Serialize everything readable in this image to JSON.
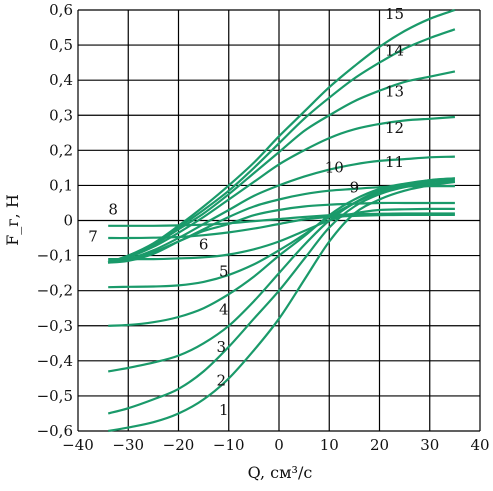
{
  "chart_data": {
    "type": "line",
    "xlabel": "Q, см³/с",
    "ylabel": "F_г, Н",
    "xlim": [
      -40,
      40
    ],
    "ylim": [
      -0.6,
      0.6
    ],
    "grid": true,
    "x_ticks": [
      "−40",
      "−30",
      "−20",
      "−10",
      "0",
      "10",
      "20",
      "30",
      "40"
    ],
    "y_ticks": [
      "0,6",
      "0,5",
      "0,4",
      "0,3",
      "0,2",
      "0,1",
      "0",
      "−0,1",
      "−0,2",
      "−0,3",
      "−0,4",
      "−0,5",
      "−0,6"
    ],
    "line_color": "#1a9a6a",
    "x": [
      -34,
      -30,
      -25,
      -20,
      -15,
      -10,
      -5,
      0,
      5,
      10,
      15,
      20,
      25,
      30,
      35
    ],
    "series": [
      {
        "label": "1",
        "values": [
          -0.6,
          -0.59,
          -0.575,
          -0.55,
          -0.51,
          -0.45,
          -0.37,
          -0.28,
          -0.17,
          -0.06,
          0.02,
          0.06,
          0.085,
          0.1,
          0.11
        ]
      },
      {
        "label": "2",
        "values": [
          -0.55,
          -0.535,
          -0.51,
          -0.48,
          -0.43,
          -0.36,
          -0.28,
          -0.2,
          -0.11,
          -0.02,
          0.04,
          0.075,
          0.095,
          0.105,
          0.11
        ]
      },
      {
        "label": "3",
        "values": [
          -0.43,
          -0.42,
          -0.405,
          -0.385,
          -0.35,
          -0.3,
          -0.23,
          -0.15,
          -0.07,
          0.0,
          0.05,
          0.085,
          0.1,
          0.11,
          0.115
        ]
      },
      {
        "label": "4",
        "values": [
          -0.3,
          -0.298,
          -0.29,
          -0.275,
          -0.25,
          -0.21,
          -0.16,
          -0.1,
          -0.045,
          0.015,
          0.06,
          0.09,
          0.105,
          0.115,
          0.12
        ]
      },
      {
        "label": "5",
        "values": [
          -0.19,
          -0.189,
          -0.188,
          -0.185,
          -0.175,
          -0.155,
          -0.125,
          -0.085,
          -0.04,
          0.01,
          0.05,
          0.08,
          0.1,
          0.115,
          0.12
        ]
      },
      {
        "label": "6",
        "values": [
          -0.11,
          -0.11,
          -0.11,
          -0.108,
          -0.105,
          -0.097,
          -0.082,
          -0.06,
          -0.03,
          0.0,
          0.02,
          0.03,
          0.032,
          0.033,
          0.033
        ]
      },
      {
        "label": "7",
        "values": [
          -0.05,
          -0.05,
          -0.049,
          -0.047,
          -0.042,
          -0.034,
          -0.023,
          -0.01,
          0.003,
          0.01,
          0.013,
          0.015,
          0.016,
          0.016,
          0.016
        ]
      },
      {
        "label": "8",
        "values": [
          -0.015,
          -0.015,
          -0.015,
          -0.014,
          -0.012,
          -0.008,
          -0.002,
          0.004,
          0.01,
          0.015,
          0.018,
          0.019,
          0.02,
          0.02,
          0.02
        ]
      },
      {
        "label": "9",
        "values": [
          -0.115,
          -0.11,
          -0.09,
          -0.06,
          -0.03,
          -0.01,
          0.015,
          0.03,
          0.04,
          0.045,
          0.048,
          0.05,
          0.05,
          0.05,
          0.05
        ]
      },
      {
        "label": "10",
        "values": [
          -0.12,
          -0.115,
          -0.095,
          -0.06,
          -0.025,
          0.01,
          0.04,
          0.06,
          0.075,
          0.085,
          0.09,
          0.095,
          0.097,
          0.098,
          0.098
        ]
      },
      {
        "label": "11",
        "values": [
          -0.12,
          -0.11,
          -0.085,
          -0.05,
          -0.01,
          0.03,
          0.07,
          0.1,
          0.125,
          0.145,
          0.16,
          0.17,
          0.175,
          0.18,
          0.182
        ]
      },
      {
        "label": "12",
        "values": [
          -0.12,
          -0.105,
          -0.075,
          -0.035,
          0.01,
          0.06,
          0.11,
          0.16,
          0.2,
          0.235,
          0.26,
          0.275,
          0.285,
          0.29,
          0.295
        ]
      },
      {
        "label": "13",
        "values": [
          -0.12,
          -0.1,
          -0.07,
          -0.025,
          0.02,
          0.075,
          0.135,
          0.195,
          0.255,
          0.3,
          0.34,
          0.37,
          0.395,
          0.41,
          0.425
        ]
      },
      {
        "label": "14",
        "values": [
          -0.12,
          -0.1,
          -0.07,
          -0.02,
          0.03,
          0.085,
          0.15,
          0.22,
          0.29,
          0.35,
          0.405,
          0.45,
          0.49,
          0.52,
          0.545
        ]
      },
      {
        "label": "15",
        "values": [
          -0.12,
          -0.1,
          -0.065,
          -0.015,
          0.04,
          0.1,
          0.165,
          0.24,
          0.31,
          0.38,
          0.44,
          0.495,
          0.54,
          0.575,
          0.6
        ]
      }
    ],
    "curve_labels": [
      {
        "text": "1",
        "x": -11,
        "y": -0.555
      },
      {
        "text": "2",
        "x": -11.5,
        "y": -0.47
      },
      {
        "text": "3",
        "x": -11.5,
        "y": -0.375
      },
      {
        "text": "4",
        "x": -11,
        "y": -0.268
      },
      {
        "text": "5",
        "x": -11,
        "y": -0.16
      },
      {
        "text": "6",
        "x": -15,
        "y": -0.082
      },
      {
        "text": "7",
        "x": -37,
        "y": -0.06
      },
      {
        "text": "8",
        "x": -33,
        "y": 0.017
      },
      {
        "text": "9",
        "x": 15,
        "y": 0.08
      },
      {
        "text": "10",
        "x": 11,
        "y": 0.137
      },
      {
        "text": "11",
        "x": 23,
        "y": 0.152
      },
      {
        "text": "12",
        "x": 23,
        "y": 0.25
      },
      {
        "text": "13",
        "x": 23,
        "y": 0.353
      },
      {
        "text": "14",
        "x": 23,
        "y": 0.47
      },
      {
        "text": "15",
        "x": 23,
        "y": 0.575
      }
    ]
  }
}
